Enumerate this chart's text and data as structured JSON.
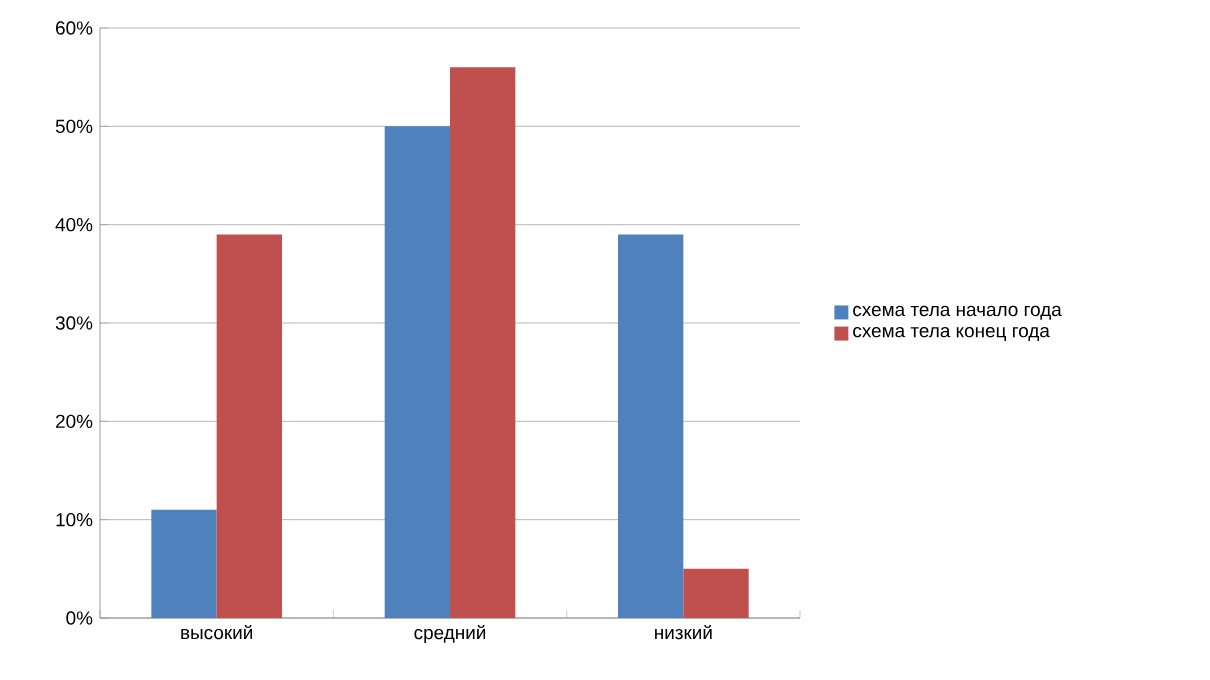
{
  "chart_data": {
    "type": "bar",
    "categories": [
      "высокий",
      "средний",
      "низкий"
    ],
    "series": [
      {
        "name": "схема тела начало года",
        "color": "#4f81bd",
        "values": [
          11,
          50,
          39
        ]
      },
      {
        "name": "схема тела конец года",
        "color": "#c0504d",
        "values": [
          39,
          56,
          5
        ]
      }
    ],
    "ylim": [
      0,
      60
    ],
    "yticks": [
      {
        "value": 0,
        "label": "0%"
      },
      {
        "value": 10,
        "label": "10%"
      },
      {
        "value": 20,
        "label": "20%"
      },
      {
        "value": 30,
        "label": "30%"
      },
      {
        "value": 40,
        "label": "40%"
      },
      {
        "value": 50,
        "label": "50%"
      },
      {
        "value": 60,
        "label": "60%"
      }
    ],
    "grid": "y",
    "legend": "right"
  }
}
